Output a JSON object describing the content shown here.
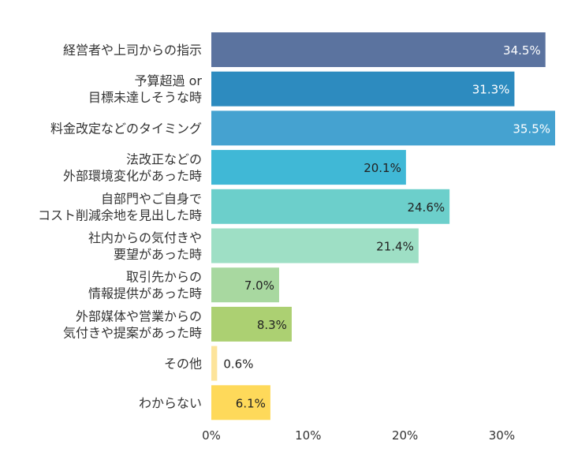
{
  "chart_data": {
    "type": "bar",
    "orientation": "horizontal",
    "categories": [
      [
        "経営者や上司からの指示"
      ],
      [
        "予算超過 or",
        "目標未達しそうな時"
      ],
      [
        "料金改定などのタイミング"
      ],
      [
        "法改正などの",
        "外部環境変化があった時"
      ],
      [
        "自部門やご自身で",
        "コスト削減余地を見出した時"
      ],
      [
        "社内からの気付きや",
        "要望があった時"
      ],
      [
        "取引先からの",
        "情報提供があった時"
      ],
      [
        "外部媒体や営業からの",
        "気付きや提案があった時"
      ],
      [
        "その他"
      ],
      [
        "わからない"
      ]
    ],
    "values": [
      34.5,
      31.3,
      35.5,
      20.1,
      24.6,
      21.4,
      7.0,
      8.3,
      0.6,
      6.1
    ],
    "value_labels": [
      "34.5%",
      "31.3%",
      "35.5%",
      "20.1%",
      "24.6%",
      "21.4%",
      "7.0%",
      "8.3%",
      "0.6%",
      "6.1%"
    ],
    "colors": [
      "#5b739f",
      "#2d8bbf",
      "#45a2d0",
      "#40b8d6",
      "#6ccfcb",
      "#9edfc5",
      "#a8d8a0",
      "#acd072",
      "#fde49b",
      "#fed95a"
    ],
    "label_colors": [
      "#ffffff",
      "#ffffff",
      "#ffffff",
      "#222222",
      "#222222",
      "#222222",
      "#222222",
      "#222222",
      "#222222",
      "#222222"
    ],
    "xlim": [
      0,
      35.5
    ],
    "x_ticks": [
      0,
      10,
      20,
      30
    ],
    "x_tick_labels": [
      "0%",
      "10%",
      "20%",
      "30%"
    ],
    "grid": false
  }
}
